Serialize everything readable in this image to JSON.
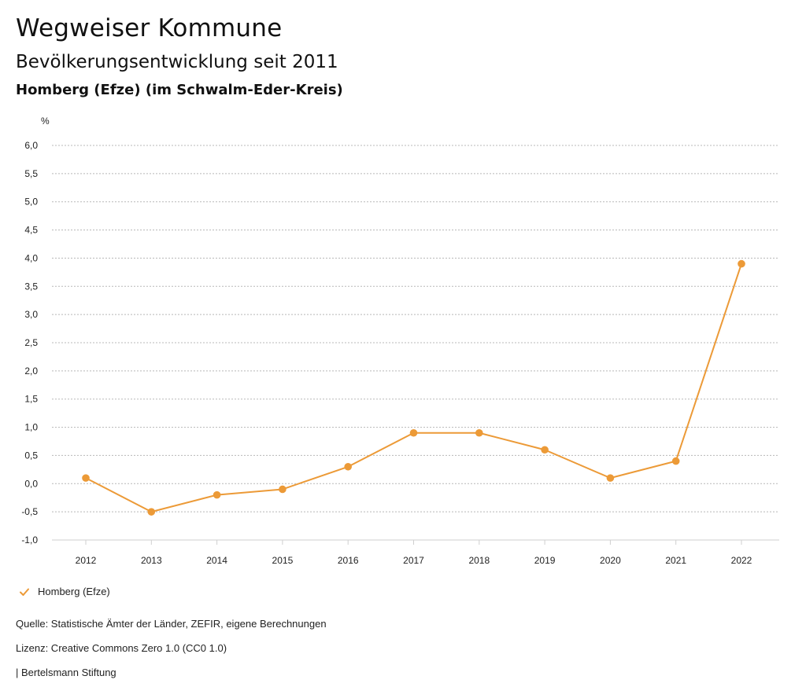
{
  "header": {
    "title": "Wegweiser Kommune",
    "subtitle": "Bevölkerungsentwicklung seit 2011",
    "region": "Homberg (Efze) (im Schwalm-Eder-Kreis)"
  },
  "chart_data": {
    "type": "line",
    "ylabel": "%",
    "x": [
      "2012",
      "2013",
      "2014",
      "2015",
      "2016",
      "2017",
      "2018",
      "2019",
      "2020",
      "2021",
      "2022"
    ],
    "series": [
      {
        "name": "Homberg (Efze)",
        "color": "#ec9a37",
        "values": [
          0.1,
          -0.5,
          -0.2,
          -0.1,
          0.3,
          0.9,
          0.9,
          0.6,
          0.1,
          0.4,
          3.9
        ]
      }
    ],
    "ylim": [
      -1.0,
      6.0
    ],
    "yticks": [
      6.0,
      5.5,
      5.0,
      4.5,
      4.0,
      3.5,
      3.0,
      2.5,
      2.0,
      1.5,
      1.0,
      0.5,
      0.0,
      -0.5,
      -1.0
    ],
    "ytick_labels": [
      "6,0",
      "5,5",
      "5,0",
      "4,5",
      "4,0",
      "3,5",
      "3,0",
      "2,5",
      "2,0",
      "1,5",
      "1,0",
      "0,5",
      "0,0",
      "-0,5",
      "-1,0"
    ],
    "grid": true,
    "grid_style": "dotted",
    "legend_position": "bottom-left"
  },
  "legend": {
    "label": "Homberg (Efze)",
    "icon": "check-icon"
  },
  "footer": {
    "source": "Quelle: Statistische Ämter der Länder, ZEFIR, eigene Berechnungen",
    "license": "Lizenz: Creative Commons Zero 1.0 (CC0 1.0)",
    "publisher": "| Bertelsmann Stiftung"
  }
}
